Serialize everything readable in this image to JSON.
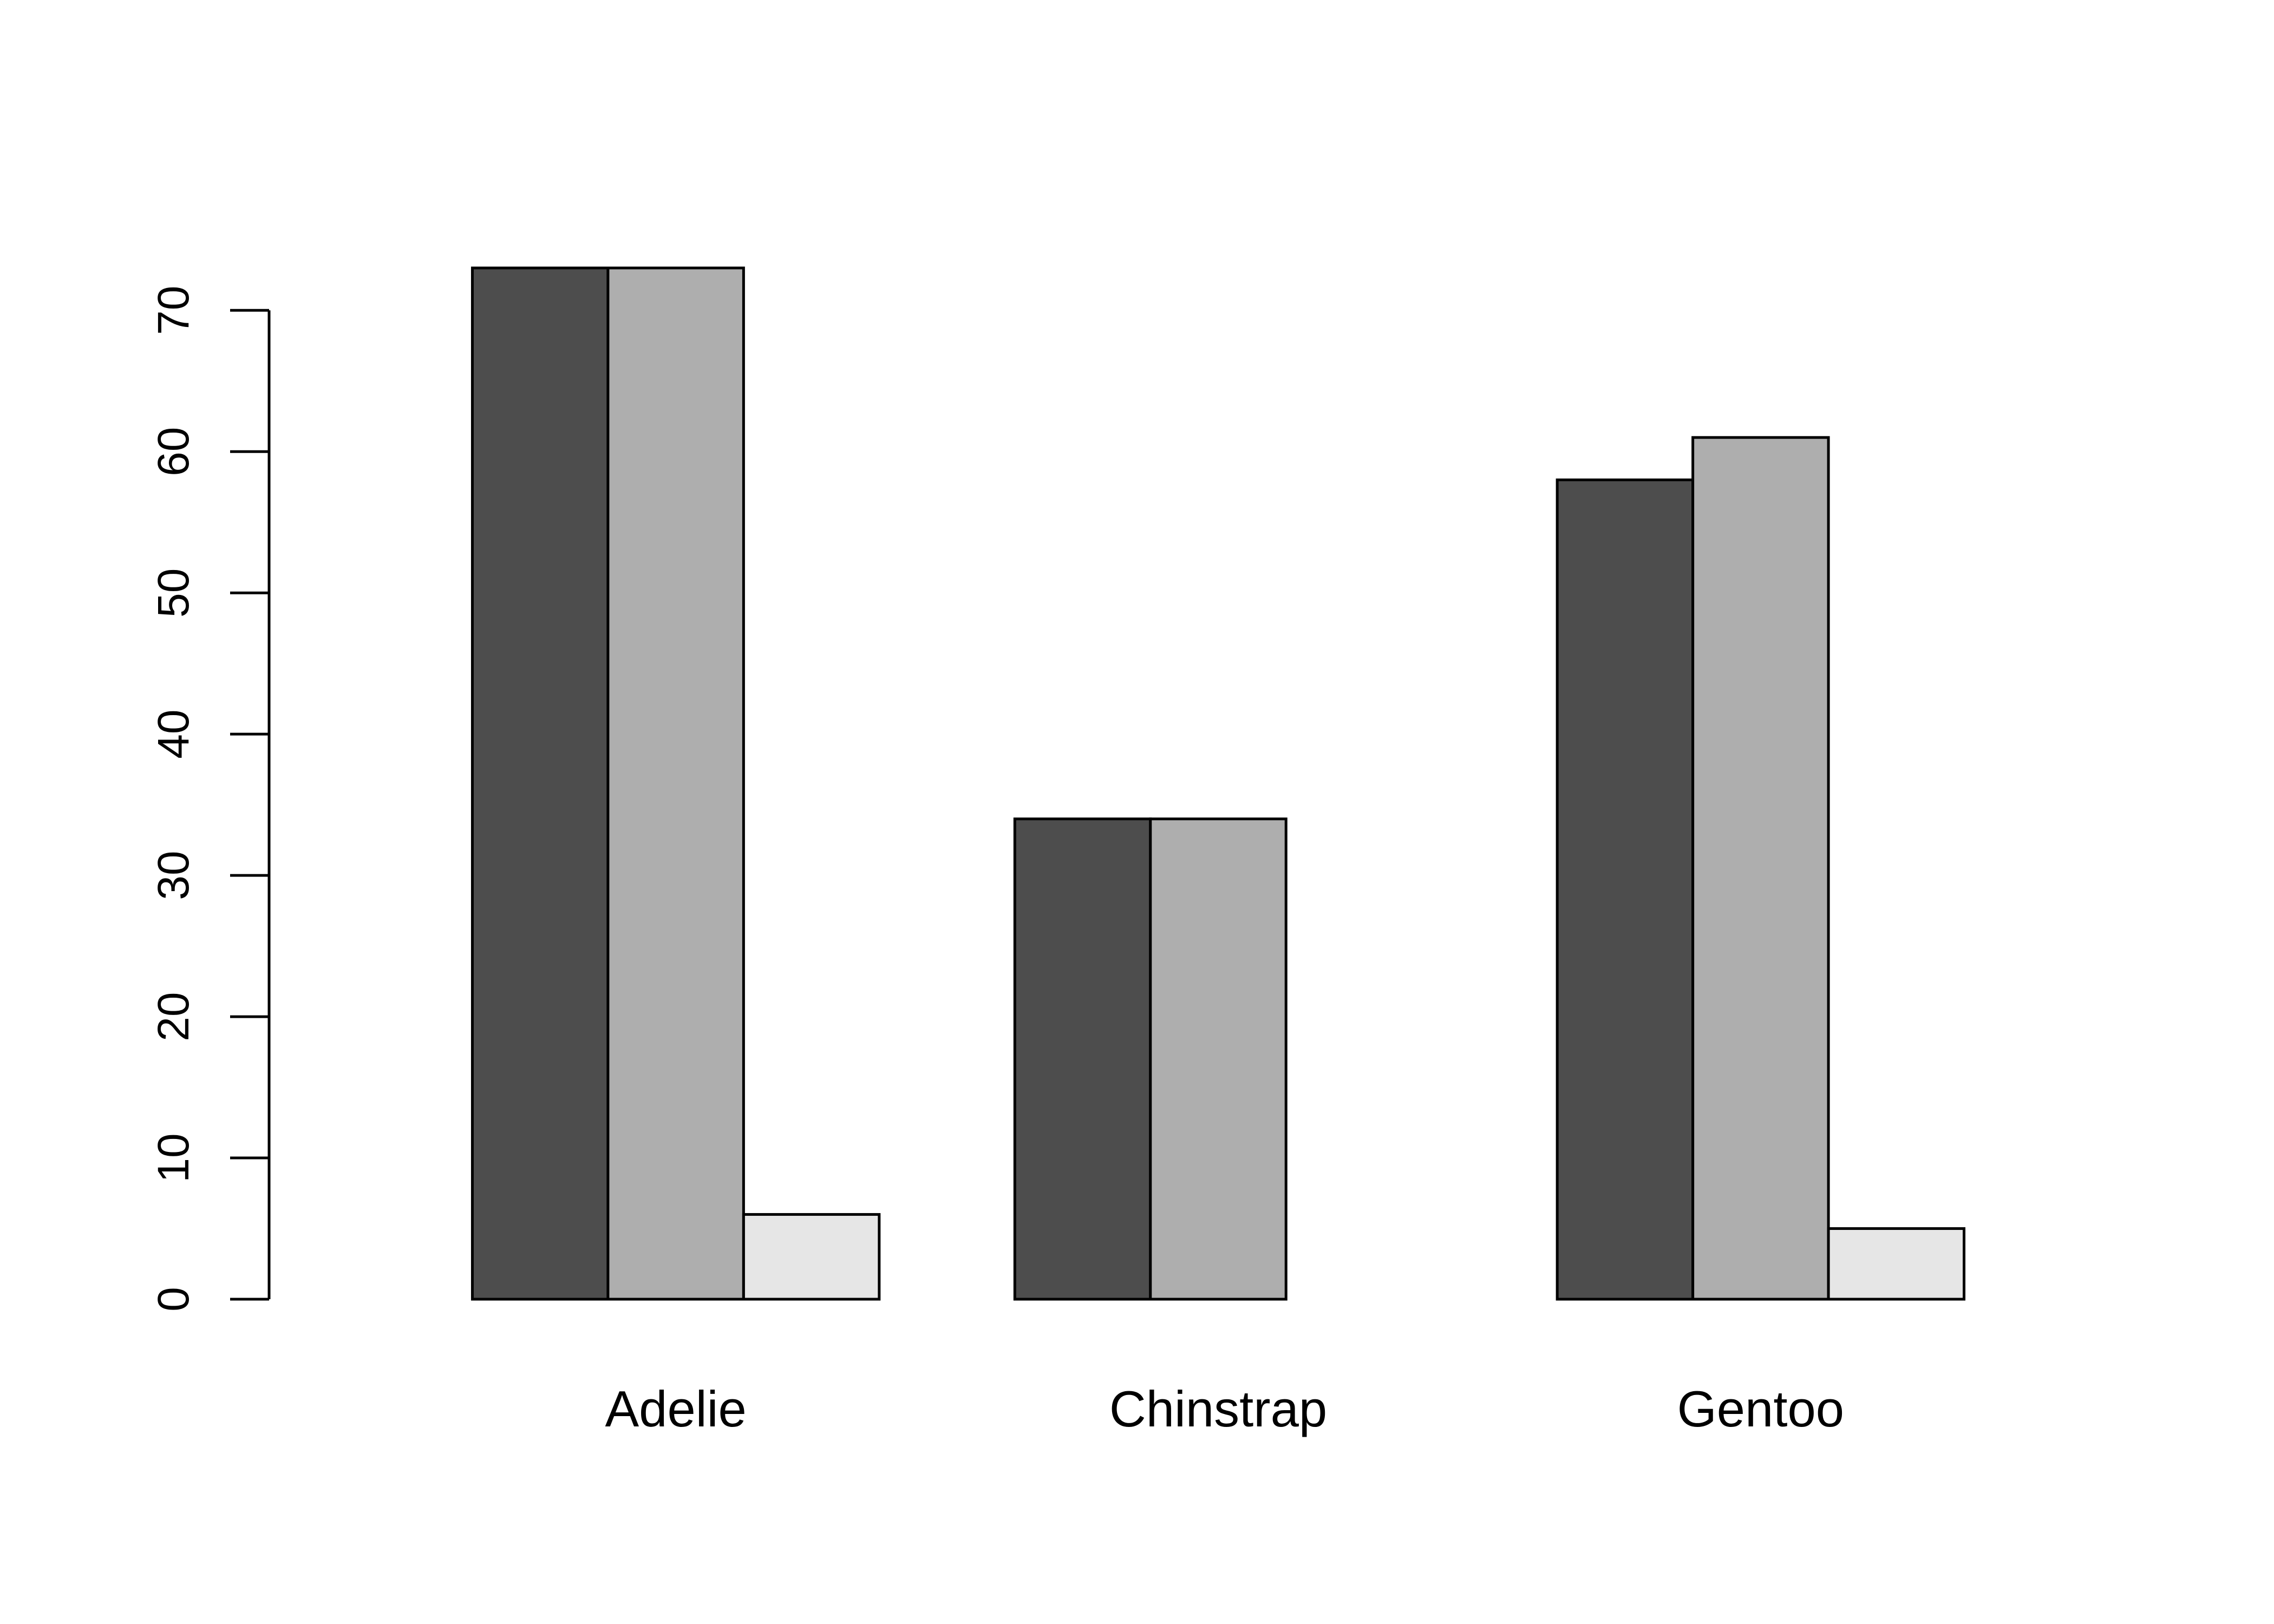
{
  "chart_data": {
    "type": "bar",
    "title": "",
    "xlabel": "",
    "ylabel": "",
    "categories": [
      "Adelie",
      "Chinstrap",
      "Gentoo"
    ],
    "series": [
      {
        "values": [
          73,
          34,
          58
        ],
        "color": "#4d4d4d"
      },
      {
        "values": [
          73,
          34,
          61
        ],
        "color": "#aeaeae"
      },
      {
        "values": [
          6,
          0,
          5
        ],
        "color": "#e6e6e6"
      }
    ],
    "ylim": [
      0,
      73
    ],
    "yticks": [
      0,
      10,
      20,
      30,
      40,
      50,
      60,
      70
    ],
    "grid": false,
    "legend": "none"
  }
}
